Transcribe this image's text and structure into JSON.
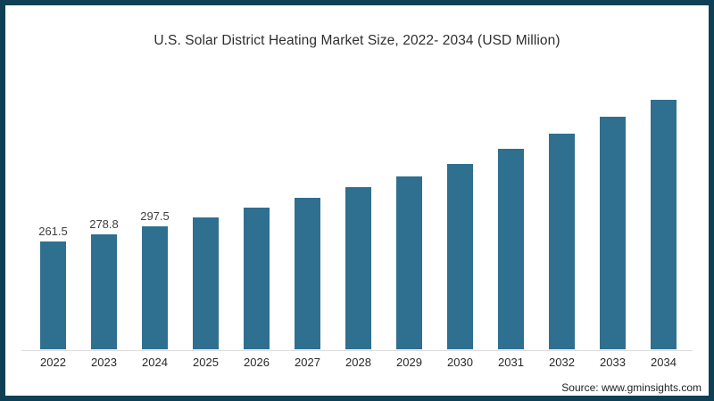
{
  "page": {
    "border_color": "#0d3f55",
    "background": "#ffffff"
  },
  "chart_data": {
    "type": "bar",
    "title": "U.S. Solar District Heating Market Size, 2022- 2034 (USD Million)",
    "categories": [
      "2022",
      "2023",
      "2024",
      "2025",
      "2026",
      "2027",
      "2028",
      "2029",
      "2030",
      "2031",
      "2032",
      "2033",
      "2034"
    ],
    "values": [
      261.5,
      278.8,
      297.5,
      319,
      343,
      367,
      393,
      419,
      449,
      484,
      521,
      562,
      603
    ],
    "data_labels": [
      "261.5",
      "278.8",
      "297.5",
      "",
      "",
      "",
      "",
      "",
      "",
      "",
      "",
      "",
      ""
    ],
    "bar_color": "#2f6f90",
    "xlabel": "",
    "ylabel": "",
    "ylim": [
      0,
      650
    ],
    "grid": false,
    "legend": false,
    "axis_line_color": "#dcdcdc"
  },
  "source": {
    "label": "Source: www.gminsights.com"
  }
}
